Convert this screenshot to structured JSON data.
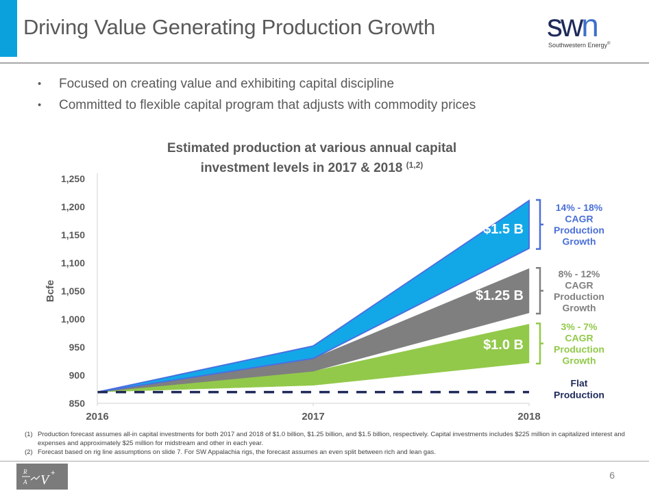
{
  "slide": {
    "title": "Driving Value Generating Production Growth",
    "logo": {
      "mark_sw": "sw",
      "mark_n": "n",
      "subtitle": "Southwestern Energy",
      "trademark": "®"
    },
    "bullets": [
      "Focused on creating value and exhibiting capital discipline",
      "Committed to flexible capital program that adjusts with commodity prices"
    ],
    "bullet_glyph": "•",
    "footnotes": [
      {
        "num": "(1)",
        "text": "Production forecast assumes all-in capital investments for both 2017 and 2018 of $1.0 billion, $1.25 billion, and $1.5 billion, respectively. Capital investments includes $225 million in capitalized interest and expenses and approximately $25 million for midstream and other in each year."
      },
      {
        "num": "(2)",
        "text": "Forecast based on rig line assumptions on slide 7. For SW Appalachia rigs, the forecast assumes an even split between rich and lean gas."
      }
    ],
    "page_number": "6",
    "footer_logo_icon": "rav-plus-formula-icon"
  },
  "chart_data": {
    "type": "area",
    "title_line1": "Estimated production at various annual capital",
    "title_line2": "investment levels in 2017 & 2018",
    "title_superscript": "(1,2)",
    "xlabel": "",
    "ylabel": "Bcfe",
    "x": [
      "2016",
      "2017",
      "2018"
    ],
    "ylim": [
      850,
      1250
    ],
    "yticks": [
      850,
      900,
      950,
      1000,
      1050,
      1100,
      1150,
      1200,
      1250
    ],
    "ytick_labels": [
      "850",
      "900",
      "950",
      "1,000",
      "1,050",
      "1,100",
      "1,150",
      "1,200",
      "1,250"
    ],
    "grid": false,
    "series": [
      {
        "name": "$1.0 B",
        "label": "$1.0 B",
        "color": "#92C94A",
        "lower": [
          870,
          882,
          922
        ],
        "upper": [
          870,
          907,
          991
        ],
        "annotation": [
          "3% - 7%",
          "CAGR",
          "Production",
          "Growth"
        ],
        "annotation_color": "#92C94A"
      },
      {
        "name": "$1.25 B",
        "label": "$1.25 B",
        "color": "#7F7F7F",
        "lower": [
          870,
          907,
          1011
        ],
        "upper": [
          870,
          930,
          1090
        ],
        "annotation": [
          "8% - 12%",
          "CAGR",
          "Production",
          "Growth"
        ],
        "annotation_color": "#7F7F7F"
      },
      {
        "name": "$1.5 B",
        "label": "$1.5 B",
        "color": "#12A8E8",
        "edge_color": "#4A6FE0",
        "lower": [
          870,
          930,
          1126
        ],
        "upper": [
          870,
          952,
          1211
        ],
        "annotation": [
          "14% - 18%",
          "CAGR",
          "Production",
          "Growth"
        ],
        "annotation_color": "#4A6FD8"
      },
      {
        "name": "Flat Production",
        "type": "dashed-line",
        "color": "#1F2A5A",
        "values": [
          870,
          870,
          870
        ],
        "annotation": [
          "Flat",
          "Production"
        ],
        "annotation_color": "#1F2A5A"
      }
    ]
  }
}
